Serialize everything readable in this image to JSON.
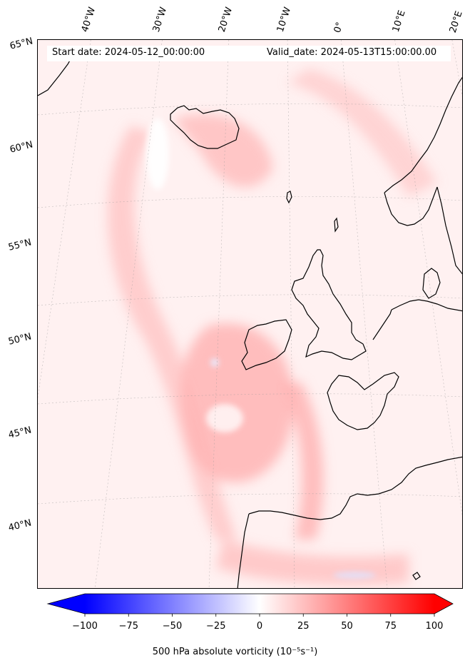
{
  "map": {
    "variable": "500 hPa absolute vorticity",
    "start_date_text": "Start date: 2024-05-12_00:00:00",
    "valid_date_text": "Valid_date: 2024-05-13T15:00:00.00",
    "latitude_labels": [
      "65°N",
      "60°N",
      "55°N",
      "50°N",
      "45°N",
      "40°N"
    ],
    "longitude_labels": [
      "40°W",
      "30°W",
      "20°W",
      "10°W",
      "0°",
      "10°E",
      "20°E"
    ],
    "field_color_low": "#0000ff",
    "field_color_mid": "#ffffff",
    "field_color_high": "#ff0000"
  },
  "colorbar": {
    "min": -100,
    "max": 100,
    "ticks": [
      "−100",
      "−75",
      "−50",
      "−25",
      "0",
      "25",
      "50",
      "75",
      "100"
    ],
    "label": "500 hPa absolute vorticity (10⁻⁵s⁻¹)",
    "extend": "both"
  }
}
